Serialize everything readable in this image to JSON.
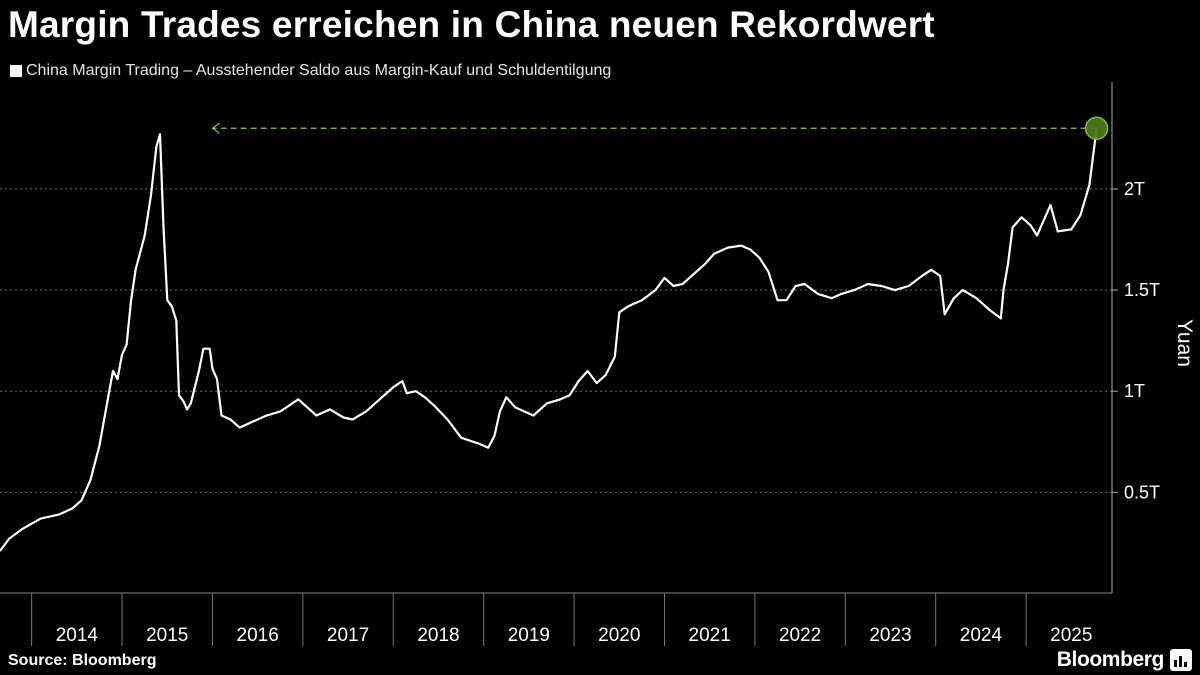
{
  "title": "Margin Trades erreichen in China neuen Rekordwert",
  "footer": {
    "source": "Source: Bloomberg",
    "brand": "Bloomberg"
  },
  "colors": {
    "background": "#000000",
    "line": "#ffffff",
    "highlight": "#8bc34a",
    "grid": "#6e6e6e"
  },
  "chart_data": {
    "type": "line",
    "legend": [
      "China Margin Trading – Ausstehender Saldo aus Margin-Kauf und Schuldentilgung"
    ],
    "legend_position": "top-left",
    "ylabel": "Yuan",
    "y_axis_side": "right",
    "ylim": [
      0.0,
      2.5
    ],
    "y_ticks": [
      {
        "value": 0.5,
        "label": "0.5T"
      },
      {
        "value": 1.0,
        "label": "1T"
      },
      {
        "value": 1.5,
        "label": "1.5T"
      },
      {
        "value": 2.0,
        "label": "2T"
      }
    ],
    "xlim": [
      2013.65,
      2025.95
    ],
    "x_ticks": [
      "2014",
      "2015",
      "2016",
      "2017",
      "2018",
      "2019",
      "2020",
      "2021",
      "2022",
      "2023",
      "2024",
      "2025"
    ],
    "grid": "horizontal dashed",
    "series": [
      {
        "name": "China Margin Trading – Ausstehender Saldo aus Margin-Kauf und Schuldentilgung",
        "points": [
          [
            2013.65,
            0.21
          ],
          [
            2013.75,
            0.27
          ],
          [
            2013.9,
            0.32
          ],
          [
            2014.1,
            0.37
          ],
          [
            2014.3,
            0.39
          ],
          [
            2014.45,
            0.42
          ],
          [
            2014.55,
            0.46
          ],
          [
            2014.65,
            0.56
          ],
          [
            2014.75,
            0.73
          ],
          [
            2014.85,
            0.98
          ],
          [
            2014.9,
            1.1
          ],
          [
            2014.95,
            1.06
          ],
          [
            2015.0,
            1.18
          ],
          [
            2015.05,
            1.23
          ],
          [
            2015.1,
            1.45
          ],
          [
            2015.15,
            1.6
          ],
          [
            2015.25,
            1.77
          ],
          [
            2015.32,
            1.97
          ],
          [
            2015.38,
            2.21
          ],
          [
            2015.42,
            2.27
          ],
          [
            2015.46,
            1.8
          ],
          [
            2015.5,
            1.45
          ],
          [
            2015.55,
            1.42
          ],
          [
            2015.6,
            1.35
          ],
          [
            2015.63,
            0.98
          ],
          [
            2015.68,
            0.95
          ],
          [
            2015.72,
            0.91
          ],
          [
            2015.76,
            0.94
          ],
          [
            2015.85,
            1.1
          ],
          [
            2015.9,
            1.21
          ],
          [
            2015.97,
            1.21
          ],
          [
            2016.0,
            1.11
          ],
          [
            2016.05,
            1.06
          ],
          [
            2016.1,
            0.88
          ],
          [
            2016.2,
            0.86
          ],
          [
            2016.3,
            0.82
          ],
          [
            2016.45,
            0.85
          ],
          [
            2016.6,
            0.88
          ],
          [
            2016.75,
            0.9
          ],
          [
            2016.85,
            0.93
          ],
          [
            2016.95,
            0.96
          ],
          [
            2017.05,
            0.92
          ],
          [
            2017.15,
            0.88
          ],
          [
            2017.3,
            0.91
          ],
          [
            2017.45,
            0.87
          ],
          [
            2017.55,
            0.86
          ],
          [
            2017.7,
            0.9
          ],
          [
            2017.85,
            0.96
          ],
          [
            2018.0,
            1.02
          ],
          [
            2018.1,
            1.05
          ],
          [
            2018.15,
            0.99
          ],
          [
            2018.25,
            1.0
          ],
          [
            2018.35,
            0.97
          ],
          [
            2018.45,
            0.93
          ],
          [
            2018.6,
            0.86
          ],
          [
            2018.75,
            0.77
          ],
          [
            2018.95,
            0.74
          ],
          [
            2019.05,
            0.72
          ],
          [
            2019.12,
            0.78
          ],
          [
            2019.18,
            0.9
          ],
          [
            2019.25,
            0.97
          ],
          [
            2019.35,
            0.92
          ],
          [
            2019.55,
            0.88
          ],
          [
            2019.7,
            0.94
          ],
          [
            2019.85,
            0.96
          ],
          [
            2019.95,
            0.98
          ],
          [
            2020.05,
            1.05
          ],
          [
            2020.15,
            1.1
          ],
          [
            2020.25,
            1.04
          ],
          [
            2020.35,
            1.08
          ],
          [
            2020.45,
            1.17
          ],
          [
            2020.5,
            1.39
          ],
          [
            2020.6,
            1.42
          ],
          [
            2020.75,
            1.45
          ],
          [
            2020.9,
            1.5
          ],
          [
            2021.0,
            1.56
          ],
          [
            2021.1,
            1.52
          ],
          [
            2021.2,
            1.53
          ],
          [
            2021.3,
            1.57
          ],
          [
            2021.45,
            1.63
          ],
          [
            2021.55,
            1.68
          ],
          [
            2021.7,
            1.71
          ],
          [
            2021.85,
            1.72
          ],
          [
            2021.95,
            1.7
          ],
          [
            2022.05,
            1.66
          ],
          [
            2022.15,
            1.59
          ],
          [
            2022.25,
            1.45
          ],
          [
            2022.35,
            1.45
          ],
          [
            2022.45,
            1.52
          ],
          [
            2022.55,
            1.53
          ],
          [
            2022.7,
            1.48
          ],
          [
            2022.85,
            1.46
          ],
          [
            2022.95,
            1.48
          ],
          [
            2023.1,
            1.5
          ],
          [
            2023.25,
            1.53
          ],
          [
            2023.4,
            1.52
          ],
          [
            2023.55,
            1.5
          ],
          [
            2023.7,
            1.52
          ],
          [
            2023.85,
            1.57
          ],
          [
            2023.95,
            1.6
          ],
          [
            2024.05,
            1.57
          ],
          [
            2024.1,
            1.38
          ],
          [
            2024.2,
            1.46
          ],
          [
            2024.3,
            1.5
          ],
          [
            2024.45,
            1.46
          ],
          [
            2024.6,
            1.4
          ],
          [
            2024.72,
            1.36
          ],
          [
            2024.75,
            1.5
          ],
          [
            2024.8,
            1.63
          ],
          [
            2024.85,
            1.81
          ],
          [
            2024.95,
            1.86
          ],
          [
            2025.05,
            1.82
          ],
          [
            2025.12,
            1.77
          ],
          [
            2025.2,
            1.85
          ],
          [
            2025.27,
            1.92
          ],
          [
            2025.35,
            1.79
          ],
          [
            2025.5,
            1.8
          ],
          [
            2025.6,
            1.87
          ],
          [
            2025.7,
            2.02
          ],
          [
            2025.78,
            2.3
          ]
        ]
      }
    ],
    "annotations": [
      {
        "type": "record-marker",
        "x": 2025.78,
        "y": 2.3
      },
      {
        "type": "dashed-arrow",
        "from": [
          2025.78,
          2.3
        ],
        "to": [
          2016.0,
          2.3
        ],
        "direction": "left"
      }
    ]
  }
}
